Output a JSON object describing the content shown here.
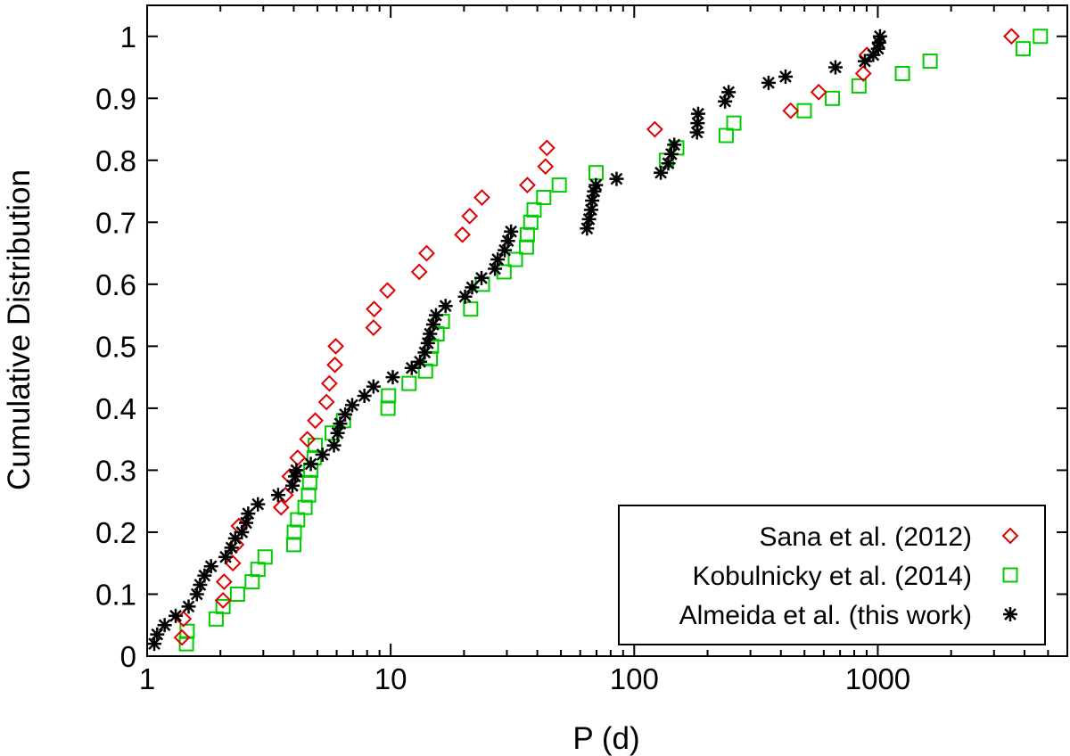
{
  "chart_data": {
    "type": "scatter",
    "xlabel": "P (d)",
    "ylabel": "Cumulative Distribution",
    "xscale": "log",
    "xlim": [
      1,
      6000
    ],
    "ylim": [
      0,
      1.05
    ],
    "x_ticks": [
      1,
      10,
      100,
      1000
    ],
    "x_tick_labels": [
      "1",
      "10",
      "100",
      "1000"
    ],
    "y_ticks": [
      0,
      0.1,
      0.2,
      0.3,
      0.4,
      0.5,
      0.6,
      0.7,
      0.8,
      0.9,
      1.0
    ],
    "y_tick_labels": [
      "0",
      "0.1",
      "0.2",
      "0.3",
      "0.4",
      "0.5",
      "0.6",
      "0.7",
      "0.8",
      "0.9",
      "1"
    ],
    "grid": false,
    "legend_position": "bottom-right",
    "series": [
      {
        "name": "Sana et al. (2012)",
        "marker": "diamond",
        "color": "#e00000",
        "points": [
          [
            1.39,
            0.03
          ],
          [
            1.41,
            0.06
          ],
          [
            2.05,
            0.09
          ],
          [
            2.07,
            0.12
          ],
          [
            2.25,
            0.15
          ],
          [
            2.32,
            0.18
          ],
          [
            2.38,
            0.21
          ],
          [
            3.55,
            0.24
          ],
          [
            3.7,
            0.26
          ],
          [
            3.85,
            0.29
          ],
          [
            4.15,
            0.32
          ],
          [
            4.55,
            0.35
          ],
          [
            4.9,
            0.38
          ],
          [
            5.45,
            0.41
          ],
          [
            5.6,
            0.44
          ],
          [
            5.9,
            0.47
          ],
          [
            5.95,
            0.5
          ],
          [
            8.5,
            0.53
          ],
          [
            8.55,
            0.56
          ],
          [
            9.7,
            0.59
          ],
          [
            13.1,
            0.62
          ],
          [
            14.05,
            0.65
          ],
          [
            19.7,
            0.68
          ],
          [
            21.1,
            0.71
          ],
          [
            23.7,
            0.74
          ],
          [
            36.4,
            0.76
          ],
          [
            43.2,
            0.79
          ],
          [
            43.8,
            0.82
          ],
          [
            121.5,
            0.85
          ],
          [
            439,
            0.88
          ],
          [
            572,
            0.91
          ],
          [
            872,
            0.94
          ],
          [
            902,
            0.97
          ],
          [
            3540,
            1.0
          ]
        ]
      },
      {
        "name": "Kobulnicky et al. (2014)",
        "marker": "square",
        "color": "#00cc00",
        "points": [
          [
            1.45,
            0.02
          ],
          [
            1.46,
            0.04
          ],
          [
            1.92,
            0.06
          ],
          [
            2.05,
            0.08
          ],
          [
            2.35,
            0.1
          ],
          [
            2.7,
            0.12
          ],
          [
            2.85,
            0.14
          ],
          [
            3.05,
            0.16
          ],
          [
            4.0,
            0.18
          ],
          [
            4.02,
            0.2
          ],
          [
            4.15,
            0.22
          ],
          [
            4.45,
            0.24
          ],
          [
            4.6,
            0.26
          ],
          [
            4.65,
            0.28
          ],
          [
            4.7,
            0.3
          ],
          [
            4.85,
            0.32
          ],
          [
            4.9,
            0.34
          ],
          [
            5.75,
            0.36
          ],
          [
            6.4,
            0.38
          ],
          [
            9.75,
            0.4
          ],
          [
            9.8,
            0.42
          ],
          [
            11.9,
            0.44
          ],
          [
            13.9,
            0.46
          ],
          [
            14.55,
            0.48
          ],
          [
            14.7,
            0.5
          ],
          [
            15.5,
            0.52
          ],
          [
            16.3,
            0.54
          ],
          [
            21.3,
            0.56
          ],
          [
            23.8,
            0.6
          ],
          [
            29.2,
            0.62
          ],
          [
            32.5,
            0.64
          ],
          [
            36.1,
            0.66
          ],
          [
            36.4,
            0.68
          ],
          [
            37.6,
            0.7
          ],
          [
            38.8,
            0.72
          ],
          [
            42.5,
            0.74
          ],
          [
            49.2,
            0.76
          ],
          [
            69.7,
            0.78
          ],
          [
            135.5,
            0.8
          ],
          [
            149.5,
            0.82
          ],
          [
            238.5,
            0.84
          ],
          [
            256.5,
            0.86
          ],
          [
            499,
            0.88
          ],
          [
            651,
            0.9
          ],
          [
            837,
            0.92
          ],
          [
            1262,
            0.94
          ],
          [
            1640,
            0.96
          ],
          [
            3950,
            0.98
          ],
          [
            4650,
            1.0
          ]
        ]
      },
      {
        "name": "Almeida et al. (this work)",
        "marker": "star",
        "color": "#000000",
        "points": [
          [
            1.07,
            0.02
          ],
          [
            1.1,
            0.035
          ],
          [
            1.18,
            0.05
          ],
          [
            1.31,
            0.065
          ],
          [
            1.48,
            0.08
          ],
          [
            1.6,
            0.1
          ],
          [
            1.65,
            0.115
          ],
          [
            1.72,
            0.13
          ],
          [
            1.83,
            0.145
          ],
          [
            2.1,
            0.16
          ],
          [
            2.22,
            0.175
          ],
          [
            2.3,
            0.19
          ],
          [
            2.45,
            0.2
          ],
          [
            2.55,
            0.215
          ],
          [
            2.6,
            0.23
          ],
          [
            2.85,
            0.245
          ],
          [
            3.45,
            0.26
          ],
          [
            3.95,
            0.275
          ],
          [
            4.05,
            0.29
          ],
          [
            4.1,
            0.3
          ],
          [
            4.7,
            0.31
          ],
          [
            5.25,
            0.325
          ],
          [
            5.85,
            0.34
          ],
          [
            6.05,
            0.36
          ],
          [
            6.2,
            0.375
          ],
          [
            6.5,
            0.39
          ],
          [
            6.95,
            0.405
          ],
          [
            7.8,
            0.42
          ],
          [
            8.5,
            0.435
          ],
          [
            10.2,
            0.45
          ],
          [
            12.2,
            0.465
          ],
          [
            13.2,
            0.475
          ],
          [
            13.8,
            0.49
          ],
          [
            14.2,
            0.505
          ],
          [
            14.5,
            0.52
          ],
          [
            14.95,
            0.535
          ],
          [
            15.35,
            0.55
          ],
          [
            16.8,
            0.565
          ],
          [
            20.2,
            0.58
          ],
          [
            21.6,
            0.595
          ],
          [
            23.6,
            0.61
          ],
          [
            26.8,
            0.625
          ],
          [
            27.5,
            0.64
          ],
          [
            29.4,
            0.655
          ],
          [
            30.3,
            0.67
          ],
          [
            31.2,
            0.685
          ],
          [
            64,
            0.69
          ],
          [
            65.2,
            0.705
          ],
          [
            66.5,
            0.72
          ],
          [
            67.2,
            0.735
          ],
          [
            68.5,
            0.75
          ],
          [
            69.6,
            0.76
          ],
          [
            84.6,
            0.77
          ],
          [
            128.5,
            0.78
          ],
          [
            138,
            0.795
          ],
          [
            142,
            0.81
          ],
          [
            146,
            0.825
          ],
          [
            181,
            0.845
          ],
          [
            182,
            0.86
          ],
          [
            183,
            0.875
          ],
          [
            236,
            0.895
          ],
          [
            244,
            0.91
          ],
          [
            356,
            0.925
          ],
          [
            418,
            0.935
          ],
          [
            670,
            0.95
          ],
          [
            885,
            0.96
          ],
          [
            958,
            0.97
          ],
          [
            1002,
            0.98
          ],
          [
            1012,
            0.99
          ],
          [
            1021,
            1.0
          ]
        ]
      }
    ]
  }
}
